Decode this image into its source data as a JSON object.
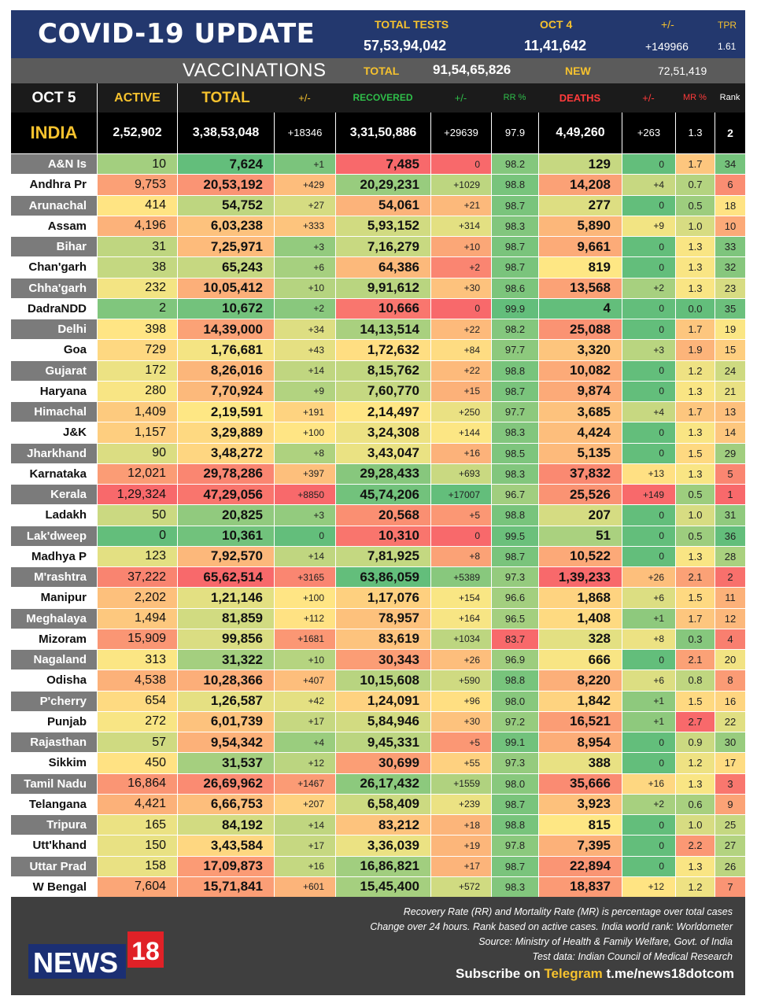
{
  "header": {
    "title": "COVID-19 UPDATE",
    "total_tests_label": "TOTAL TESTS",
    "total_tests": "57,53,94,042",
    "date_label": "OCT 4",
    "date_tests": "11,41,642",
    "change_label": "+/-",
    "change_value": "+149966",
    "tpr_label": "TPR",
    "tpr_value": "1.61"
  },
  "vaccinations": {
    "title": "VACCINATIONS",
    "total_label": "TOTAL",
    "total": "91,54,65,826",
    "new_label": "NEW",
    "new": "72,51,419"
  },
  "columns": {
    "date": "OCT 5",
    "active": "ACTIVE",
    "total": "TOTAL",
    "change1": "+/-",
    "recovered": "RECOVERED",
    "change2": "+/-",
    "rr": "RR %",
    "deaths": "DEATHS",
    "change3": "+/-",
    "mr": "MR %",
    "rank": "Rank"
  },
  "india": {
    "name": "INDIA",
    "active": "2,52,902",
    "total": "3,38,53,048",
    "total_change": "+18346",
    "recovered": "3,31,50,886",
    "recovered_change": "+29639",
    "rr": "97.9",
    "deaths": "4,49,260",
    "deaths_change": "+263",
    "mr": "1.3",
    "rank": "2"
  },
  "states": [
    {
      "name": "A&N Is",
      "active": "10",
      "total": "7,624",
      "tc": "+1",
      "rec": "7,485",
      "rc": "0",
      "rr": "98.2",
      "deaths": "129",
      "dc": "0",
      "mr": "1.7",
      "rank": "34"
    },
    {
      "name": "Andhra Pr",
      "active": "9,753",
      "total": "20,53,192",
      "tc": "+429",
      "rec": "20,29,231",
      "rc": "+1029",
      "rr": "98.8",
      "deaths": "14,208",
      "dc": "+4",
      "mr": "0.7",
      "rank": "6"
    },
    {
      "name": "Arunachal",
      "active": "414",
      "total": "54,752",
      "tc": "+27",
      "rec": "54,061",
      "rc": "+21",
      "rr": "98.7",
      "deaths": "277",
      "dc": "0",
      "mr": "0.5",
      "rank": "18"
    },
    {
      "name": "Assam",
      "active": "4,196",
      "total": "6,03,238",
      "tc": "+333",
      "rec": "5,93,152",
      "rc": "+314",
      "rr": "98.3",
      "deaths": "5,890",
      "dc": "+9",
      "mr": "1.0",
      "rank": "10"
    },
    {
      "name": "Bihar",
      "active": "31",
      "total": "7,25,971",
      "tc": "+3",
      "rec": "7,16,279",
      "rc": "+10",
      "rr": "98.7",
      "deaths": "9,661",
      "dc": "0",
      "mr": "1.3",
      "rank": "33"
    },
    {
      "name": "Chan'garh",
      "active": "38",
      "total": "65,243",
      "tc": "+6",
      "rec": "64,386",
      "rc": "+2",
      "rr": "98.7",
      "deaths": "819",
      "dc": "0",
      "mr": "1.3",
      "rank": "32"
    },
    {
      "name": "Chha'garh",
      "active": "232",
      "total": "10,05,412",
      "tc": "+10",
      "rec": "9,91,612",
      "rc": "+30",
      "rr": "98.6",
      "deaths": "13,568",
      "dc": "+2",
      "mr": "1.3",
      "rank": "23"
    },
    {
      "name": "DadraNDD",
      "active": "2",
      "total": "10,672",
      "tc": "+2",
      "rec": "10,666",
      "rc": "0",
      "rr": "99.9",
      "deaths": "4",
      "dc": "0",
      "mr": "0.0",
      "rank": "35"
    },
    {
      "name": "Delhi",
      "active": "398",
      "total": "14,39,000",
      "tc": "+34",
      "rec": "14,13,514",
      "rc": "+22",
      "rr": "98.2",
      "deaths": "25,088",
      "dc": "0",
      "mr": "1.7",
      "rank": "19"
    },
    {
      "name": "Goa",
      "active": "729",
      "total": "1,76,681",
      "tc": "+43",
      "rec": "1,72,632",
      "rc": "+84",
      "rr": "97.7",
      "deaths": "3,320",
      "dc": "+3",
      "mr": "1.9",
      "rank": "15"
    },
    {
      "name": "Gujarat",
      "active": "172",
      "total": "8,26,016",
      "tc": "+14",
      "rec": "8,15,762",
      "rc": "+22",
      "rr": "98.8",
      "deaths": "10,082",
      "dc": "0",
      "mr": "1.2",
      "rank": "24"
    },
    {
      "name": "Haryana",
      "active": "280",
      "total": "7,70,924",
      "tc": "+9",
      "rec": "7,60,770",
      "rc": "+15",
      "rr": "98.7",
      "deaths": "9,874",
      "dc": "0",
      "mr": "1.3",
      "rank": "21"
    },
    {
      "name": "Himachal",
      "active": "1,409",
      "total": "2,19,591",
      "tc": "+191",
      "rec": "2,14,497",
      "rc": "+250",
      "rr": "97.7",
      "deaths": "3,685",
      "dc": "+4",
      "mr": "1.7",
      "rank": "13"
    },
    {
      "name": "J&K",
      "active": "1,157",
      "total": "3,29,889",
      "tc": "+100",
      "rec": "3,24,308",
      "rc": "+144",
      "rr": "98.3",
      "deaths": "4,424",
      "dc": "0",
      "mr": "1.3",
      "rank": "14"
    },
    {
      "name": "Jharkhand",
      "active": "90",
      "total": "3,48,272",
      "tc": "+8",
      "rec": "3,43,047",
      "rc": "+16",
      "rr": "98.5",
      "deaths": "5,135",
      "dc": "0",
      "mr": "1.5",
      "rank": "29"
    },
    {
      "name": "Karnataka",
      "active": "12,021",
      "total": "29,78,286",
      "tc": "+397",
      "rec": "29,28,433",
      "rc": "+693",
      "rr": "98.3",
      "deaths": "37,832",
      "dc": "+13",
      "mr": "1.3",
      "rank": "5"
    },
    {
      "name": "Kerala",
      "active": "1,29,324",
      "total": "47,29,056",
      "tc": "+8850",
      "rec": "45,74,206",
      "rc": "+17007",
      "rr": "96.7",
      "deaths": "25,526",
      "dc": "+149",
      "mr": "0.5",
      "rank": "1"
    },
    {
      "name": "Ladakh",
      "active": "50",
      "total": "20,825",
      "tc": "+3",
      "rec": "20,568",
      "rc": "+5",
      "rr": "98.8",
      "deaths": "207",
      "dc": "0",
      "mr": "1.0",
      "rank": "31"
    },
    {
      "name": "Lak'dweep",
      "active": "0",
      "total": "10,361",
      "tc": "0",
      "rec": "10,310",
      "rc": "0",
      "rr": "99.5",
      "deaths": "51",
      "dc": "0",
      "mr": "0.5",
      "rank": "36"
    },
    {
      "name": "Madhya P",
      "active": "123",
      "total": "7,92,570",
      "tc": "+14",
      "rec": "7,81,925",
      "rc": "+8",
      "rr": "98.7",
      "deaths": "10,522",
      "dc": "0",
      "mr": "1.3",
      "rank": "28"
    },
    {
      "name": "M'rashtra",
      "active": "37,222",
      "total": "65,62,514",
      "tc": "+3165",
      "rec": "63,86,059",
      "rc": "+5389",
      "rr": "97.3",
      "deaths": "1,39,233",
      "dc": "+26",
      "mr": "2.1",
      "rank": "2"
    },
    {
      "name": "Manipur",
      "active": "2,202",
      "total": "1,21,146",
      "tc": "+100",
      "rec": "1,17,076",
      "rc": "+154",
      "rr": "96.6",
      "deaths": "1,868",
      "dc": "+6",
      "mr": "1.5",
      "rank": "11"
    },
    {
      "name": "Meghalaya",
      "active": "1,494",
      "total": "81,859",
      "tc": "+112",
      "rec": "78,957",
      "rc": "+164",
      "rr": "96.5",
      "deaths": "1,408",
      "dc": "+1",
      "mr": "1.7",
      "rank": "12"
    },
    {
      "name": "Mizoram",
      "active": "15,909",
      "total": "99,856",
      "tc": "+1681",
      "rec": "83,619",
      "rc": "+1034",
      "rr": "83.7",
      "deaths": "328",
      "dc": "+8",
      "mr": "0.3",
      "rank": "4"
    },
    {
      "name": "Nagaland",
      "active": "313",
      "total": "31,322",
      "tc": "+10",
      "rec": "30,343",
      "rc": "+26",
      "rr": "96.9",
      "deaths": "666",
      "dc": "0",
      "mr": "2.1",
      "rank": "20"
    },
    {
      "name": "Odisha",
      "active": "4,538",
      "total": "10,28,366",
      "tc": "+407",
      "rec": "10,15,608",
      "rc": "+590",
      "rr": "98.8",
      "deaths": "8,220",
      "dc": "+6",
      "mr": "0.8",
      "rank": "8"
    },
    {
      "name": "P'cherry",
      "active": "654",
      "total": "1,26,587",
      "tc": "+42",
      "rec": "1,24,091",
      "rc": "+96",
      "rr": "98.0",
      "deaths": "1,842",
      "dc": "+1",
      "mr": "1.5",
      "rank": "16"
    },
    {
      "name": "Punjab",
      "active": "272",
      "total": "6,01,739",
      "tc": "+17",
      "rec": "5,84,946",
      "rc": "+30",
      "rr": "97.2",
      "deaths": "16,521",
      "dc": "+1",
      "mr": "2.7",
      "rank": "22"
    },
    {
      "name": "Rajasthan",
      "active": "57",
      "total": "9,54,342",
      "tc": "+4",
      "rec": "9,45,331",
      "rc": "+5",
      "rr": "99.1",
      "deaths": "8,954",
      "dc": "0",
      "mr": "0.9",
      "rank": "30"
    },
    {
      "name": "Sikkim",
      "active": "450",
      "total": "31,537",
      "tc": "+12",
      "rec": "30,699",
      "rc": "+55",
      "rr": "97.3",
      "deaths": "388",
      "dc": "0",
      "mr": "1.2",
      "rank": "17"
    },
    {
      "name": "Tamil Nadu",
      "active": "16,864",
      "total": "26,69,962",
      "tc": "+1467",
      "rec": "26,17,432",
      "rc": "+1559",
      "rr": "98.0",
      "deaths": "35,666",
      "dc": "+16",
      "mr": "1.3",
      "rank": "3"
    },
    {
      "name": "Telangana",
      "active": "4,421",
      "total": "6,66,753",
      "tc": "+207",
      "rec": "6,58,409",
      "rc": "+239",
      "rr": "98.7",
      "deaths": "3,923",
      "dc": "+2",
      "mr": "0.6",
      "rank": "9"
    },
    {
      "name": "Tripura",
      "active": "165",
      "total": "84,192",
      "tc": "+14",
      "rec": "83,212",
      "rc": "+18",
      "rr": "98.8",
      "deaths": "815",
      "dc": "0",
      "mr": "1.0",
      "rank": "25"
    },
    {
      "name": "Utt'khand",
      "active": "150",
      "total": "3,43,584",
      "tc": "+17",
      "rec": "3,36,039",
      "rc": "+19",
      "rr": "97.8",
      "deaths": "7,395",
      "dc": "0",
      "mr": "2.2",
      "rank": "27"
    },
    {
      "name": "Uttar Prad",
      "active": "158",
      "total": "17,09,873",
      "tc": "+16",
      "rec": "16,86,821",
      "rc": "+17",
      "rr": "98.7",
      "deaths": "22,894",
      "dc": "0",
      "mr": "1.3",
      "rank": "26"
    },
    {
      "name": "W Bengal",
      "active": "7,604",
      "total": "15,71,841",
      "tc": "+601",
      "rec": "15,45,400",
      "rc": "+572",
      "rr": "98.3",
      "deaths": "18,837",
      "dc": "+12",
      "mr": "1.2",
      "rank": "7"
    }
  ],
  "footer": {
    "notes": [
      "Recovery Rate (RR) and Mortality Rate (MR) is percentage over total cases",
      "Change over 24 hours. Rank based on active cases. India world rank: Worldometer",
      "Source: Ministry of Health & Family Welfare, Govt. of India",
      "Test data: Indian Council of Medical Research"
    ],
    "subscribe_prefix": "Subscribe on",
    "subscribe_channel": "Telegram",
    "subscribe_link": "t.me/news18dotcom",
    "logo_text": "NEWS",
    "logo_number": "18"
  },
  "colors": {
    "header_navy": "#23386e",
    "accent_yellow": "#f6c22e",
    "recovered_green": "#2fbf4a",
    "deaths_red": "#ff3b3b",
    "heat_green": "#63be7b",
    "heat_yellow": "#ffe784",
    "heat_red": "#f8696b"
  }
}
